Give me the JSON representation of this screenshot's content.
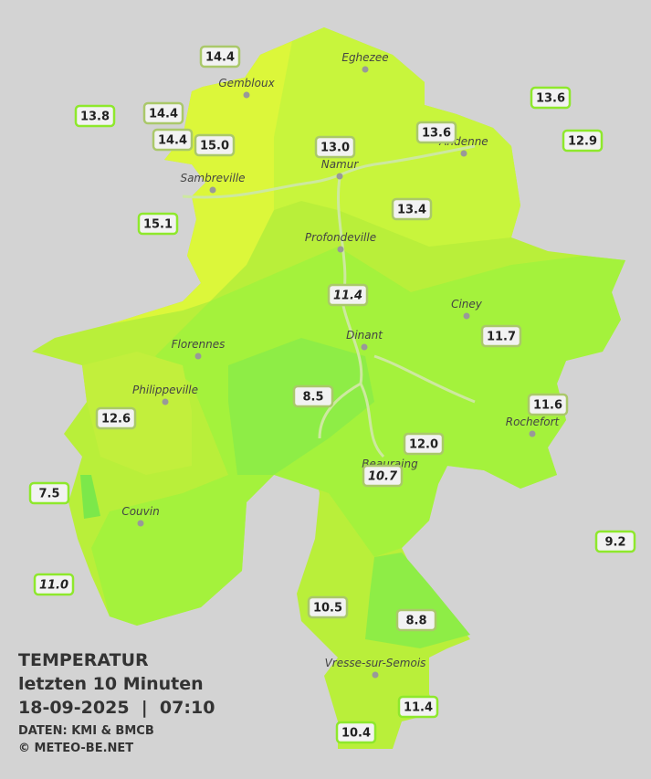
{
  "legend": {
    "title": "TEMPERATUR",
    "subtitle": "letzten 10 Minuten",
    "timestamp": "18-09-2025  |  07:10",
    "source": "DATEN: KMI & BMCB",
    "copyright": "© METEO-BE.NET"
  },
  "cities": [
    "Eghezee",
    "Gembloux",
    "Andenne",
    "Namur",
    "Sambreville",
    "Profondeville",
    "Ciney",
    "Florennes",
    "Dinant",
    "Philippeville",
    "Rochefort",
    "Beauraing",
    "Couvin",
    "Vresse-sur-Semois"
  ],
  "stations": [
    {
      "value": "14.4"
    },
    {
      "value": "13.8"
    },
    {
      "value": "14.4"
    },
    {
      "value": "14.4"
    },
    {
      "value": "15.0"
    },
    {
      "value": "13.0"
    },
    {
      "value": "13.6"
    },
    {
      "value": "13.6"
    },
    {
      "value": "12.9"
    },
    {
      "value": "15.1"
    },
    {
      "value": "13.4"
    },
    {
      "value": "11.4",
      "italic": true
    },
    {
      "value": "11.7"
    },
    {
      "value": "8.5"
    },
    {
      "value": "11.6"
    },
    {
      "value": "12.6"
    },
    {
      "value": "12.0"
    },
    {
      "value": "10.7",
      "italic": true
    },
    {
      "value": "7.5"
    },
    {
      "value": "9.2"
    },
    {
      "value": "11.0",
      "italic": true
    },
    {
      "value": "10.5"
    },
    {
      "value": "8.8"
    },
    {
      "value": "11.4"
    },
    {
      "value": "10.4"
    }
  ]
}
